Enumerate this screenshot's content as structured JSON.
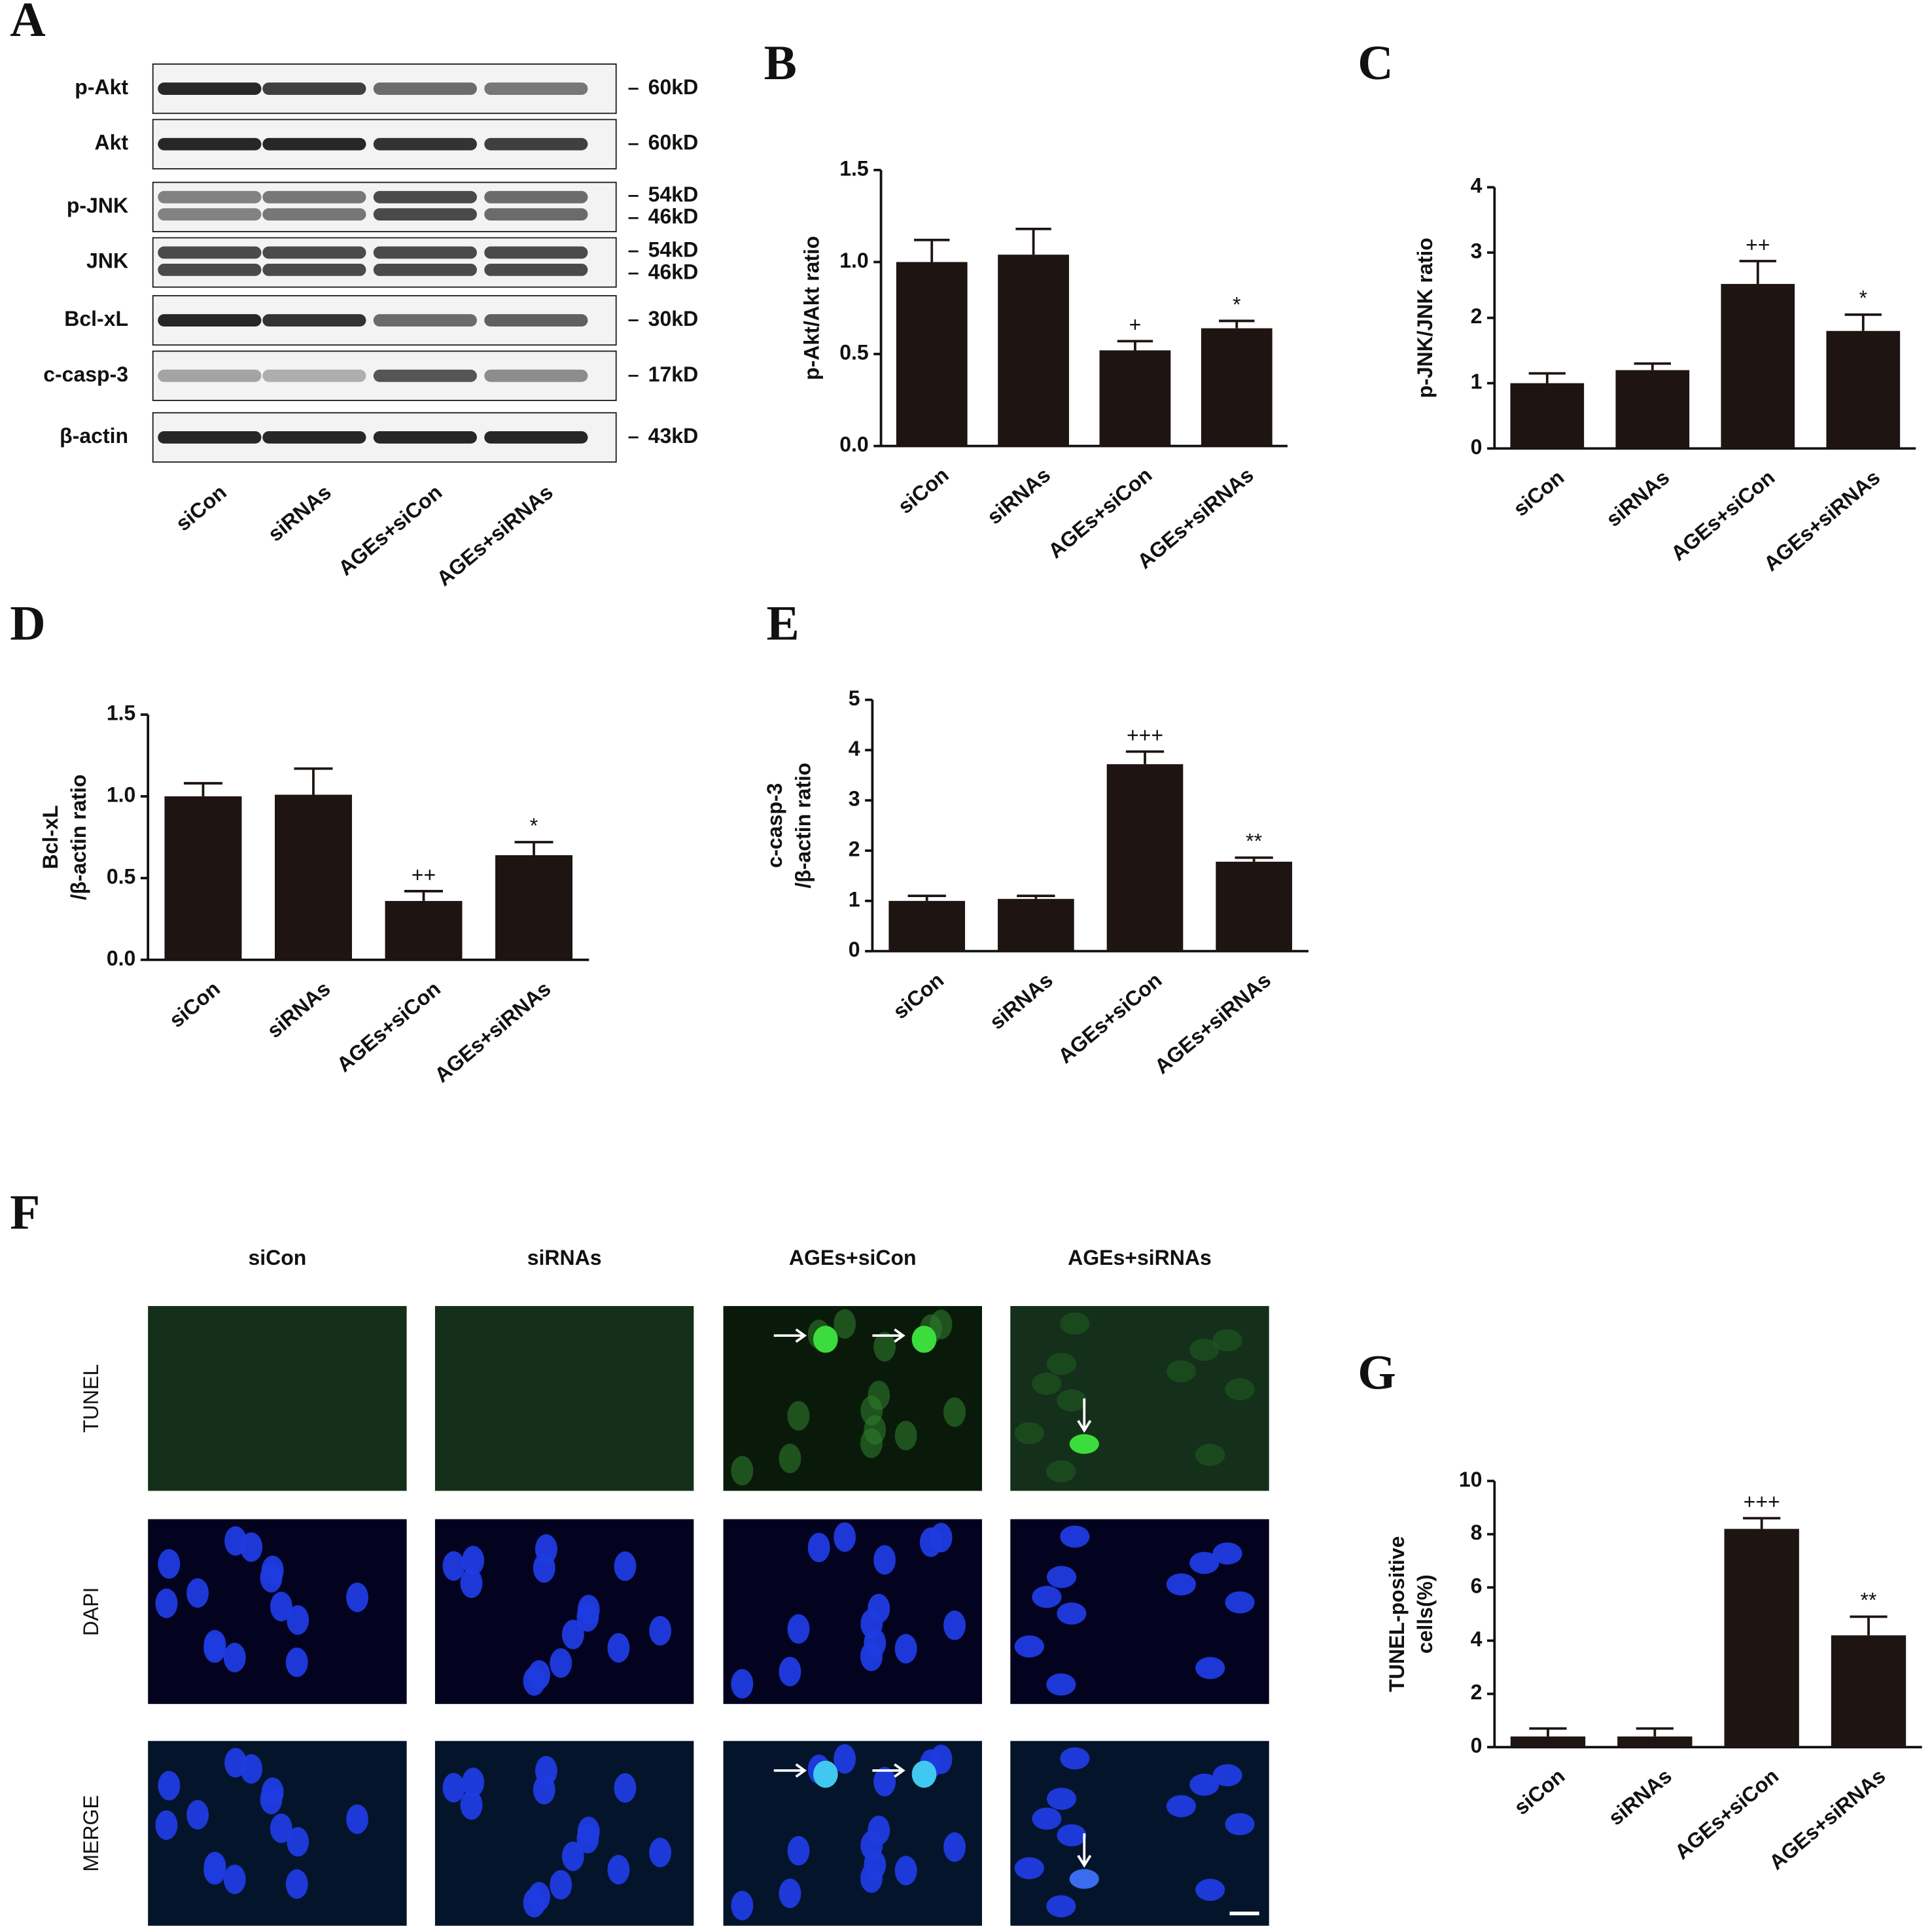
{
  "blot": {
    "label": "A",
    "rows": [
      {
        "name": "p-Akt",
        "markers": [
          "60kD"
        ]
      },
      {
        "name": "Akt",
        "markers": [
          "60kD"
        ]
      },
      {
        "name": "p-JNK",
        "markers": [
          "54kD",
          "46kD"
        ]
      },
      {
        "name": "JNK",
        "markers": [
          "54kD",
          "46kD"
        ]
      },
      {
        "name": "Bcl-xL",
        "markers": [
          "30kD"
        ]
      },
      {
        "name": "c-casp-3",
        "markers": [
          "17kD"
        ]
      },
      {
        "name": "β-actin",
        "markers": [
          "43kD"
        ]
      }
    ],
    "lanes": [
      "siCon",
      "siRNAs",
      "AGEs+siCon",
      "AGEs+siRNAs"
    ]
  },
  "microscopy": {
    "label": "F",
    "columns": [
      "siCon",
      "siRNAs",
      "AGEs+siCon",
      "AGEs+siRNAs"
    ],
    "rows": [
      "TUNEL",
      "DAPI",
      "MERGE"
    ]
  },
  "chart_data": [
    {
      "type": "bar",
      "label": "B",
      "y_label": [
        "p-Akt/Akt ratio"
      ],
      "categories": [
        "siCon",
        "siRNAs",
        "AGEs+siCon",
        "AGEs+siRNAs"
      ],
      "values": [
        1.0,
        1.04,
        0.52,
        0.64
      ],
      "errors": [
        0.12,
        0.14,
        0.05,
        0.04
      ],
      "annotations": [
        null,
        null,
        "+",
        "*"
      ],
      "color": "#1e1412",
      "ylim": [
        0,
        1.5
      ],
      "yticks": [
        {
          "value": 0,
          "label": "0.0"
        },
        0.5,
        {
          "value": 1,
          "label": "1.0"
        },
        1.5
      ]
    },
    {
      "type": "bar",
      "label": "C",
      "y_label": [
        "p-JNK/JNK ratio"
      ],
      "categories": [
        "siCon",
        "siRNAs",
        "AGEs+siCon",
        "AGEs+siRNAs"
      ],
      "values": [
        1.0,
        1.2,
        2.52,
        1.8
      ],
      "errors": [
        0.15,
        0.1,
        0.35,
        0.25
      ],
      "annotations": [
        null,
        null,
        "++",
        "*"
      ],
      "color": "#1e1412",
      "ylim": [
        0,
        4
      ],
      "yticks": [
        0,
        1,
        2,
        3,
        4
      ]
    },
    {
      "type": "bar",
      "label": "D",
      "y_label": [
        "Bcl-xL",
        "/β-actin ratio"
      ],
      "categories": [
        "siCon",
        "siRNAs",
        "AGEs+siCon",
        "AGEs+siRNAs"
      ],
      "values": [
        1.0,
        1.01,
        0.36,
        0.64
      ],
      "errors": [
        0.08,
        0.16,
        0.06,
        0.08
      ],
      "annotations": [
        null,
        null,
        "++",
        "*"
      ],
      "color": "#1e1412",
      "ylim": [
        0,
        1.5
      ],
      "yticks": [
        {
          "value": 0,
          "label": "0.0"
        },
        0.5,
        {
          "value": 1,
          "label": "1.0"
        },
        1.5
      ]
    },
    {
      "type": "bar",
      "label": "E",
      "y_label": [
        "c-casp-3",
        "/β-actin  ratio"
      ],
      "categories": [
        "siCon",
        "siRNAs",
        "AGEs+siCon",
        "AGEs+siRNAs"
      ],
      "values": [
        1.0,
        1.04,
        3.72,
        1.78
      ],
      "errors": [
        0.1,
        0.06,
        0.25,
        0.08
      ],
      "annotations": [
        null,
        null,
        "+++",
        "**"
      ],
      "color": "#1e1412",
      "ylim": [
        0,
        5
      ],
      "yticks": [
        0,
        1,
        2,
        3,
        4,
        5
      ]
    },
    {
      "type": "bar",
      "label": "G",
      "y_label": [
        "TUNEL-positive",
        "cells(%)"
      ],
      "categories": [
        "siCon",
        "siRNAs",
        "AGEs+siCon",
        "AGEs+siRNAs"
      ],
      "values": [
        0.4,
        0.4,
        8.2,
        4.2
      ],
      "errors": [
        0.3,
        0.3,
        0.4,
        0.7
      ],
      "annotations": [
        null,
        null,
        "+++",
        "**"
      ],
      "color": "#1e1412",
      "ylim": [
        0,
        10
      ],
      "yticks": [
        0,
        2,
        4,
        6,
        8,
        10
      ]
    }
  ]
}
